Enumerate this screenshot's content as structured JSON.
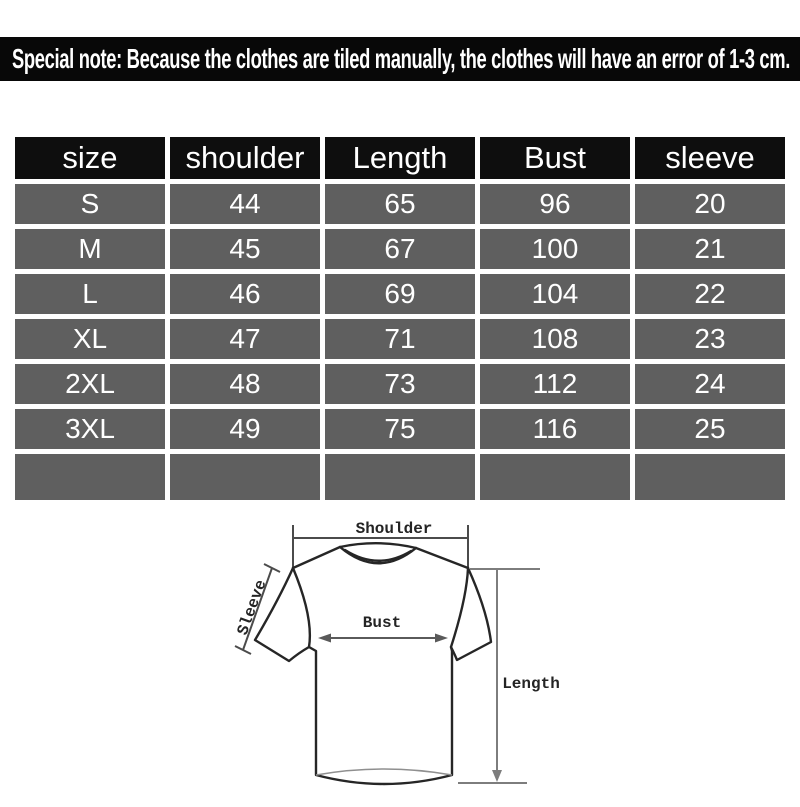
{
  "banner": {
    "text": "Special note: Because the clothes are tiled manually, the clothes will have an error of 1-3 cm."
  },
  "size_table": {
    "columns": [
      "size",
      "shoulder",
      "Length",
      "Bust",
      "sleeve"
    ],
    "rows": [
      [
        "S",
        "44",
        "65",
        "96",
        "20"
      ],
      [
        "M",
        "45",
        "67",
        "100",
        "21"
      ],
      [
        "L",
        "46",
        "69",
        "104",
        "22"
      ],
      [
        "XL",
        "47",
        "71",
        "108",
        "23"
      ],
      [
        "2XL",
        "48",
        "73",
        "112",
        "24"
      ],
      [
        "3XL",
        "49",
        "75",
        "116",
        "25"
      ],
      [
        "",
        "",
        "",
        "",
        ""
      ]
    ]
  },
  "diagram": {
    "labels": {
      "shoulder": "Shoulder",
      "sleeve": "Sleeve",
      "bust": "Bust",
      "length": "Length"
    }
  },
  "colors": {
    "page_bg": "#ffffff",
    "banner_bg": "#080808",
    "banner_text": "#ffffff",
    "header_bg": "#0e0e0e",
    "header_text": "#ffffff",
    "cell_bg": "#5f5f5f",
    "cell_text": "#ffffff",
    "sketch_line": "#262626",
    "measure_line": "#7d7d7d"
  },
  "chart_data": {
    "type": "table",
    "columns": [
      "size",
      "shoulder",
      "Length",
      "Bust",
      "sleeve"
    ],
    "rows": [
      [
        "S",
        44,
        65,
        96,
        20
      ],
      [
        "M",
        45,
        67,
        100,
        21
      ],
      [
        "L",
        46,
        69,
        104,
        22
      ],
      [
        "XL",
        47,
        71,
        108,
        23
      ],
      [
        "2XL",
        48,
        73,
        112,
        24
      ],
      [
        "3XL",
        49,
        75,
        116,
        25
      ]
    ],
    "note": "Special note: Because the clothes are tiled manually, the clothes will have an error of 1-3 cm."
  }
}
